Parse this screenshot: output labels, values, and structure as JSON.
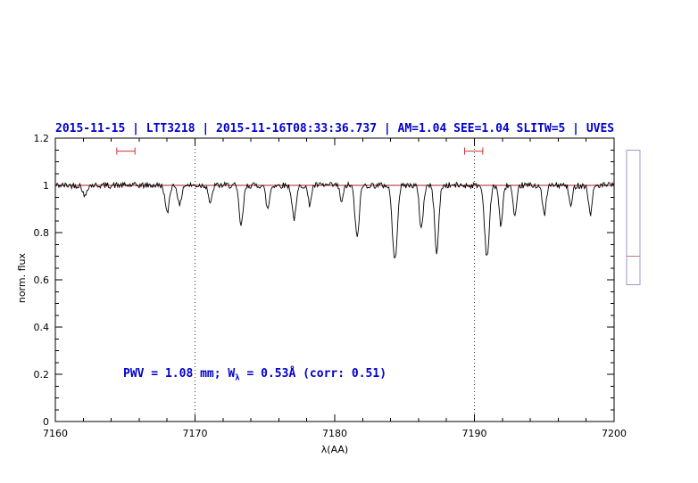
{
  "chart_data": {
    "type": "line",
    "title": "2015-11-15 | LTT3218 | 2015-11-16T08:33:36.737 | AM=1.04  SEE=1.04  SLITW=5 | UVES",
    "title_color": "#0000cd",
    "xlabel": "λ(AA)",
    "ylabel": "norm. flux",
    "xlim": [
      7160,
      7200
    ],
    "ylim": [
      0,
      1.2
    ],
    "x_major_ticks": [
      7160,
      7170,
      7180,
      7190,
      7200
    ],
    "x_minor_step": 2,
    "y_major_ticks": [
      0,
      0.2,
      0.4,
      0.6,
      0.8,
      1,
      1.2
    ],
    "y_major_tick_labels": [
      "0",
      "0.2",
      "0.4",
      "0.6",
      "0.8",
      "1",
      "1.2"
    ],
    "y_minor_step": 0.05,
    "grid": "off",
    "legend": "none",
    "dotted_vlines": [
      7170,
      7190
    ],
    "continuum_line": {
      "y": 1.0,
      "color": "#b22222"
    },
    "series_color": "#000000",
    "noise_amplitude": 0.013,
    "samples": 620,
    "absorption_lines": [
      {
        "center": 7162.1,
        "depth": 0.05,
        "sigma": 0.12
      },
      {
        "center": 7168.0,
        "depth": 0.12,
        "sigma": 0.14
      },
      {
        "center": 7168.9,
        "depth": 0.09,
        "sigma": 0.12
      },
      {
        "center": 7171.1,
        "depth": 0.08,
        "sigma": 0.12
      },
      {
        "center": 7173.3,
        "depth": 0.17,
        "sigma": 0.15
      },
      {
        "center": 7175.2,
        "depth": 0.1,
        "sigma": 0.13
      },
      {
        "center": 7177.1,
        "depth": 0.14,
        "sigma": 0.15
      },
      {
        "center": 7178.2,
        "depth": 0.08,
        "sigma": 0.12
      },
      {
        "center": 7180.5,
        "depth": 0.07,
        "sigma": 0.12
      },
      {
        "center": 7181.6,
        "depth": 0.22,
        "sigma": 0.15
      },
      {
        "center": 7184.3,
        "depth": 0.32,
        "sigma": 0.17
      },
      {
        "center": 7186.2,
        "depth": 0.18,
        "sigma": 0.14
      },
      {
        "center": 7187.3,
        "depth": 0.28,
        "sigma": 0.15
      },
      {
        "center": 7190.9,
        "depth": 0.3,
        "sigma": 0.17
      },
      {
        "center": 7191.9,
        "depth": 0.17,
        "sigma": 0.13
      },
      {
        "center": 7192.9,
        "depth": 0.14,
        "sigma": 0.13
      },
      {
        "center": 7195.0,
        "depth": 0.12,
        "sigma": 0.14
      },
      {
        "center": 7196.9,
        "depth": 0.09,
        "sigma": 0.12
      },
      {
        "center": 7198.3,
        "depth": 0.12,
        "sigma": 0.13
      }
    ],
    "range_markers": {
      "color": "#cc3333",
      "items": [
        {
          "x1": 7164.4,
          "x2": 7165.7,
          "y": 1.145
        },
        {
          "x1": 7189.3,
          "x2": 7190.6,
          "y": 1.145
        }
      ]
    },
    "annotation": {
      "pre": "PWV = 1.08 mm; W",
      "sub": "λ",
      "post": " = 0.53Å (corr: 0.51)",
      "color": "#0000cd"
    },
    "side_box": {
      "y_top": 1.15,
      "y_bottom": 0.58,
      "line_y": 0.7,
      "border_color": "#9999cc",
      "line_color": "#cc7777"
    }
  }
}
